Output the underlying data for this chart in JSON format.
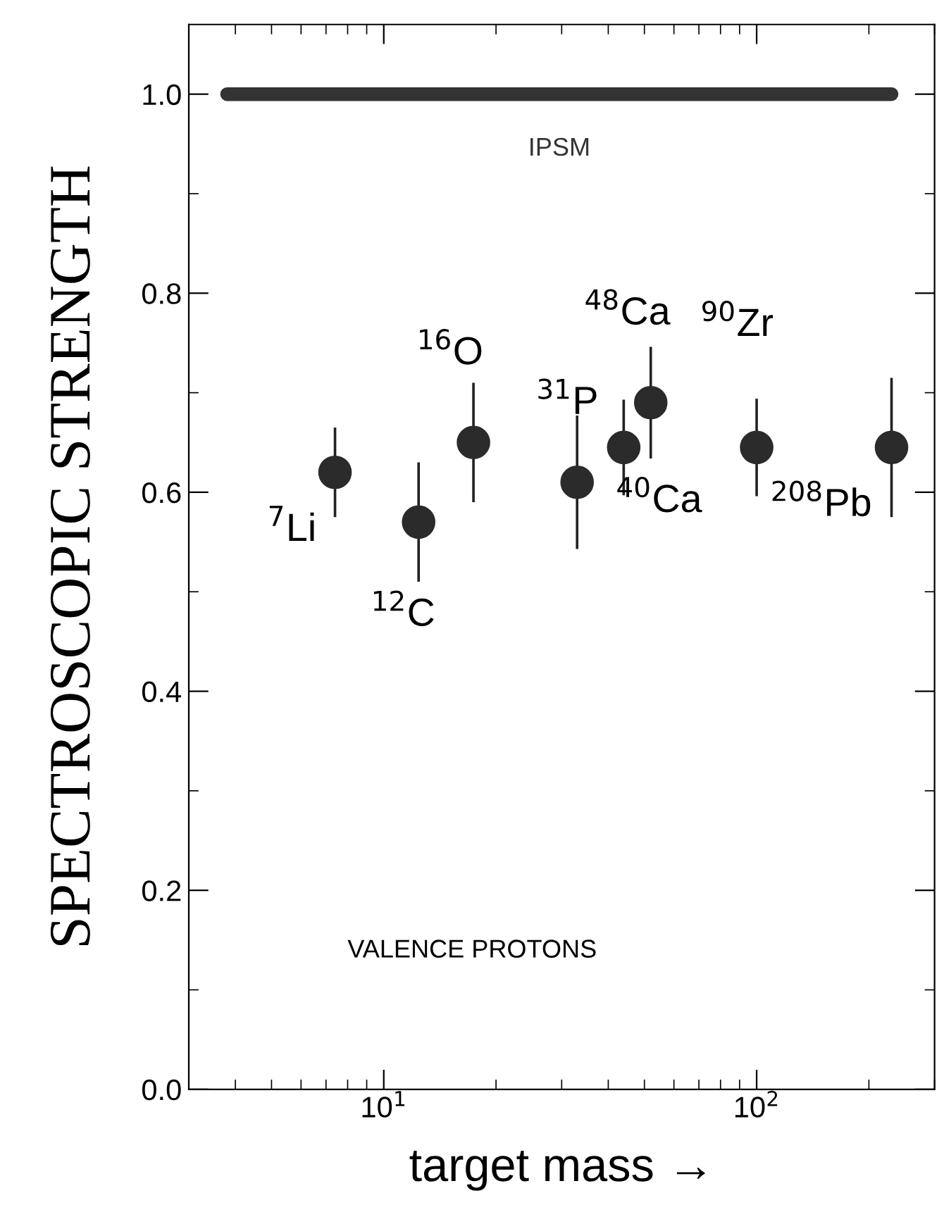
{
  "chart_data": {
    "type": "scatter",
    "xlabel": "target mass →",
    "ylabel": "SPECTROSCOPIC STRENGTH",
    "log": "x",
    "xlim": [
      3,
      300
    ],
    "xticks": [
      {
        "value": 10,
        "label": "10$^{1}$"
      },
      {
        "value": 100,
        "label": "10$^{2}$"
      }
    ],
    "ylim": [
      0,
      1.07
    ],
    "yticks": [
      {
        "value": 0,
        "label": "0.0"
      },
      {
        "value": 0.2,
        "label": "0.2"
      },
      {
        "value": 0.4,
        "label": "0.4"
      },
      {
        "value": 0.6,
        "label": "0.6"
      },
      {
        "value": 0.8,
        "label": "0.8"
      },
      {
        "value": 1.0,
        "label": "1.0"
      }
    ],
    "grid": false,
    "legend": false,
    "series": [
      {
        "type": "line",
        "name": "IPSM",
        "color": "#333333",
        "x": [
          3.8,
          230
        ],
        "values": [
          1.0,
          1.0
        ],
        "marker": "none",
        "line_style": "solid"
      },
      {
        "color": "#2b2b2b",
        "marker": "circle",
        "x": [
          7.4,
          12.4,
          17.4,
          33,
          44,
          52,
          100,
          230
        ],
        "values": [
          0.62,
          0.57,
          0.65,
          0.61,
          0.645,
          0.69,
          0.645,
          0.645
        ],
        "errors": [
          0.045,
          0.06,
          0.06,
          0.067,
          0.048,
          0.056,
          0.049,
          0.07
        ]
      }
    ],
    "annotations": [
      {
        "text": "$^{7}$Li",
        "x": 7.4,
        "y": 0.62
      },
      {
        "text": "$^{12}$C",
        "x": 12.4,
        "y": 0.57
      },
      {
        "text": "$^{16}$O",
        "x": 17.4,
        "y": 0.65
      },
      {
        "text": "$^{31}$P",
        "x": 33,
        "y": 0.61
      },
      {
        "text": "$^{40}$Ca",
        "x": 44,
        "y": 0.645
      },
      {
        "text": "$^{48}$Ca",
        "x": 52,
        "y": 0.69
      },
      {
        "text": "$^{90}$Zr",
        "x": 100,
        "y": 0.645
      },
      {
        "text": "$^{208}$Pb",
        "x": 230,
        "y": 0.645
      },
      "VALENCE PROTONS"
    ]
  }
}
